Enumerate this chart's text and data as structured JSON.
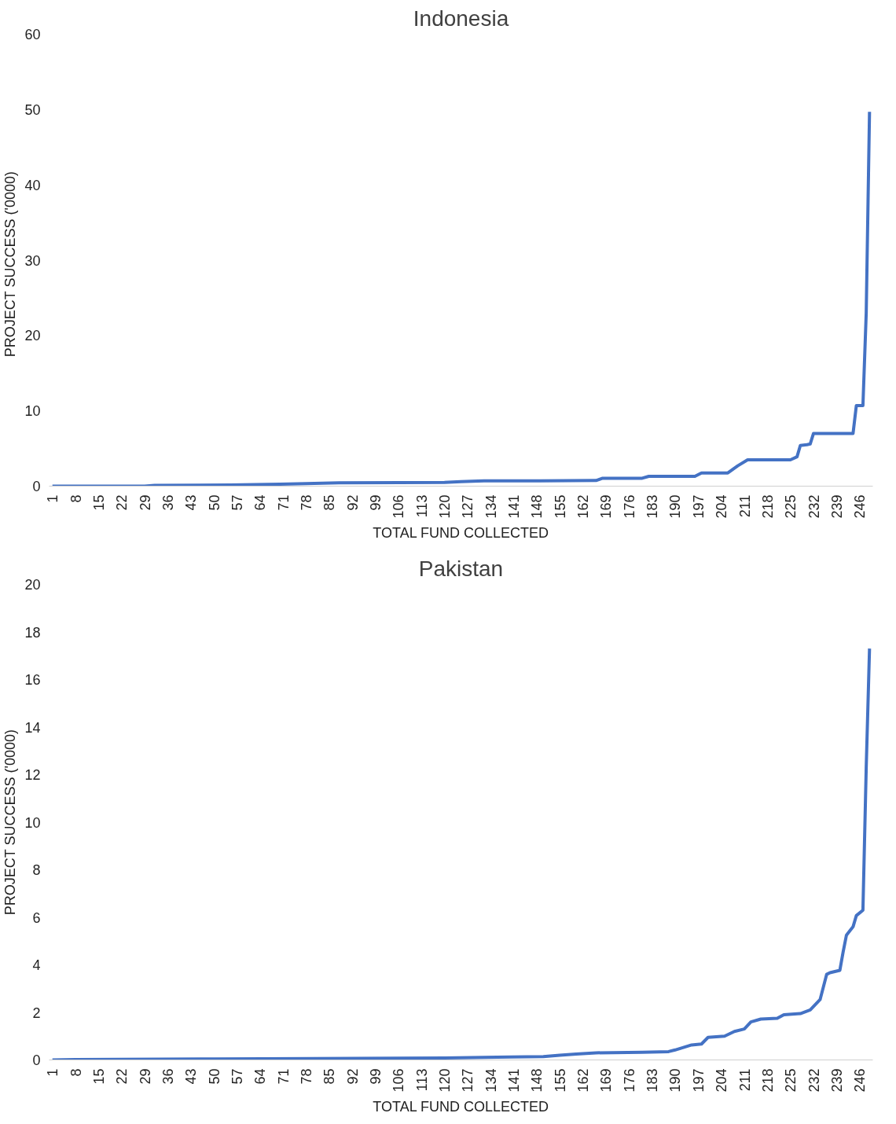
{
  "chart_data": [
    {
      "type": "line",
      "title": "Indonesia",
      "xlabel": "TOTAL FUND COLLECTED",
      "ylabel": "PROJECT SUCCESS   ('0000)",
      "grid": false,
      "marker": "none",
      "line_style": "solid",
      "xlim": [
        0,
        250
      ],
      "xticks": [
        1,
        8,
        15,
        22,
        29,
        36,
        43,
        50,
        57,
        64,
        71,
        78,
        85,
        92,
        99,
        106,
        113,
        120,
        127,
        134,
        141,
        148,
        155,
        162,
        169,
        176,
        183,
        190,
        197,
        204,
        211,
        218,
        225,
        232,
        239,
        246
      ],
      "ylim": [
        0,
        60
      ],
      "yticks": [
        0,
        10,
        20,
        30,
        40,
        50,
        60
      ],
      "x": [
        1,
        29,
        32,
        55,
        70,
        78,
        88,
        120,
        125,
        132,
        149,
        166,
        168,
        180,
        182,
        196,
        198,
        206,
        209,
        212,
        225,
        227,
        228,
        230,
        231,
        232,
        244,
        245,
        247,
        248,
        249
      ],
      "series": [
        {
          "color": "#4472c4",
          "values": [
            0,
            0,
            0.1,
            0.15,
            0.25,
            0.35,
            0.45,
            0.5,
            0.6,
            0.7,
            0.7,
            0.75,
            1.05,
            1.05,
            1.3,
            1.3,
            1.75,
            1.75,
            2.7,
            3.5,
            3.5,
            3.9,
            5.4,
            5.5,
            5.6,
            7.0,
            7.0,
            10.7,
            10.7,
            23,
            49.7
          ]
        }
      ]
    },
    {
      "type": "line",
      "title": "Pakistan",
      "xlabel": "TOTAL FUND COLLECTED",
      "ylabel": "PROJECT SUCCESS ('0000)",
      "grid": false,
      "marker": "none",
      "line_style": "solid",
      "xlim": [
        0,
        250
      ],
      "xticks": [
        1,
        8,
        15,
        22,
        29,
        36,
        43,
        50,
        57,
        64,
        71,
        78,
        85,
        92,
        99,
        106,
        113,
        120,
        127,
        134,
        141,
        148,
        155,
        162,
        169,
        176,
        183,
        190,
        197,
        204,
        211,
        218,
        225,
        232,
        239,
        246
      ],
      "ylim": [
        0,
        20
      ],
      "yticks": [
        0,
        2,
        4,
        6,
        8,
        10,
        12,
        14,
        16,
        18,
        20
      ],
      "x": [
        1,
        8,
        50,
        80,
        120,
        140,
        150,
        155,
        160,
        166,
        180,
        188,
        190,
        195,
        198,
        200,
        205,
        208,
        211,
        213,
        216,
        221,
        223,
        228,
        231,
        234,
        236,
        237,
        240,
        241,
        242,
        244,
        245,
        247,
        248,
        249
      ],
      "series": [
        {
          "color": "#4472c4",
          "values": [
            0,
            0.02,
            0.04,
            0.06,
            0.08,
            0.12,
            0.14,
            0.2,
            0.25,
            0.3,
            0.32,
            0.35,
            0.42,
            0.63,
            0.67,
            0.95,
            1.0,
            1.2,
            1.3,
            1.6,
            1.72,
            1.75,
            1.9,
            1.95,
            2.1,
            2.54,
            3.6,
            3.67,
            3.77,
            4.55,
            5.25,
            5.6,
            6.07,
            6.3,
            12.3,
            17.3
          ]
        }
      ]
    }
  ]
}
